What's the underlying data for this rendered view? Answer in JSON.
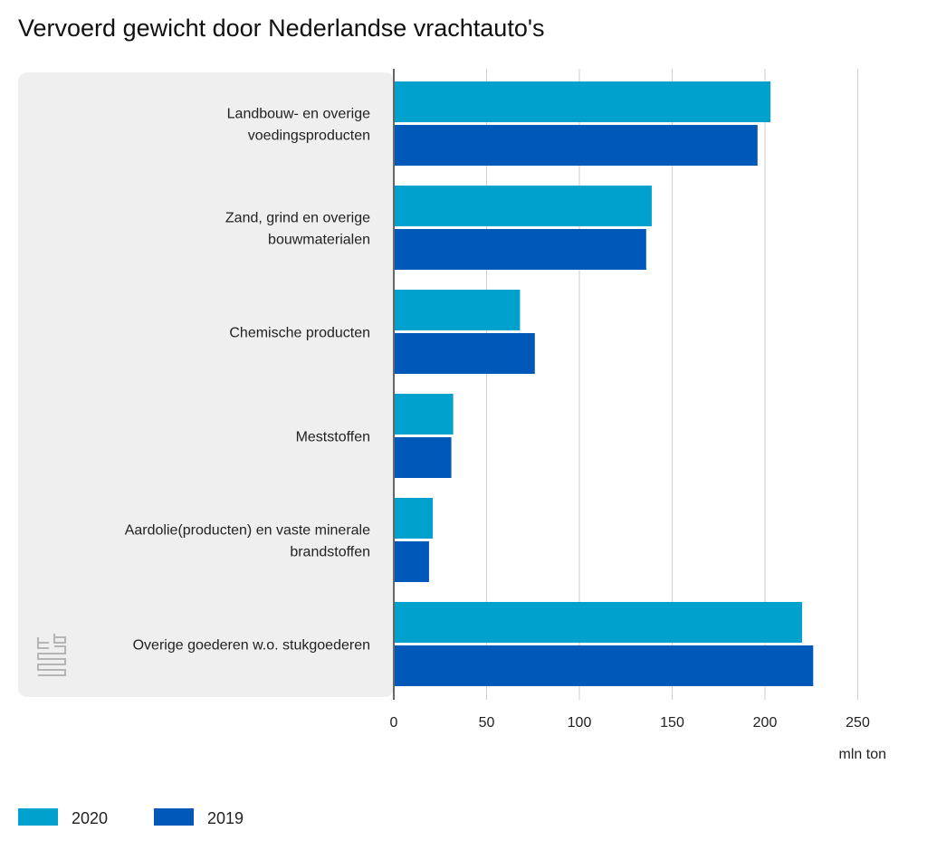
{
  "chart_data": {
    "type": "bar",
    "orientation": "horizontal",
    "title": "Vervoerd gewicht door Nederlandse vrachtauto's",
    "categories": [
      [
        "Landbouw- en overige",
        "voedingsproducten"
      ],
      [
        "Zand, grind en overige",
        "bouwmaterialen"
      ],
      [
        "Chemische producten"
      ],
      [
        "Meststoffen"
      ],
      [
        "Aardolie(producten) en vaste minerale",
        "brandstoffen"
      ],
      [
        "Overige goederen w.o. stukgoederen"
      ]
    ],
    "series": [
      {
        "name": "2020",
        "color": "#00a1cd",
        "values": [
          203,
          139,
          68,
          32,
          21,
          220
        ]
      },
      {
        "name": "2019",
        "color": "#0058b8",
        "values": [
          196,
          136,
          76,
          31,
          19,
          226
        ]
      }
    ],
    "xlim": [
      0,
      250
    ],
    "xticks": [
      "0",
      "50",
      "100",
      "150",
      "200",
      "250"
    ],
    "xlabel": "mln ton",
    "legend_position": "bottom-left",
    "grid": true
  }
}
